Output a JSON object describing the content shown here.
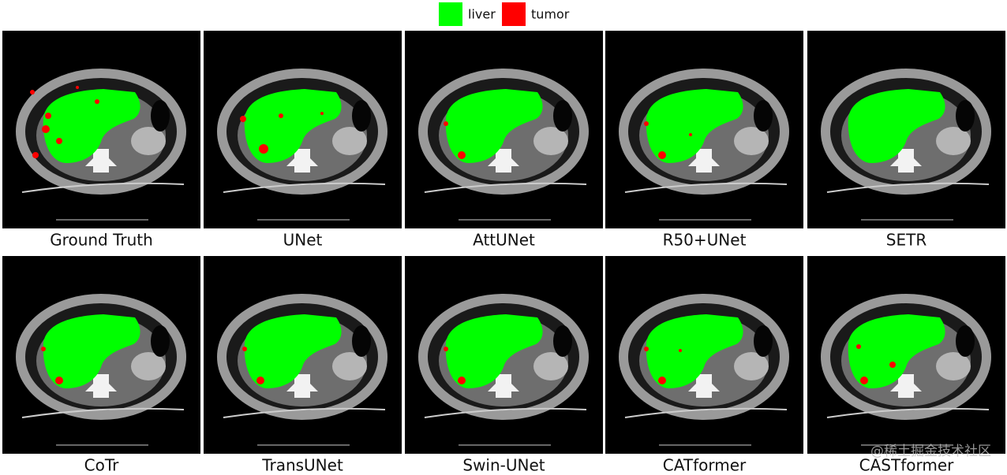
{
  "legend": [
    {
      "label": "liver",
      "color": "#00ff00"
    },
    {
      "label": "tumor",
      "color": "#ff0000"
    }
  ],
  "panels": [
    {
      "label": "Ground Truth"
    },
    {
      "label": "UNet"
    },
    {
      "label": "AttUNet"
    },
    {
      "label": "R50+UNet"
    },
    {
      "label": "SETR"
    },
    {
      "label": "CoTr"
    },
    {
      "label": "TransUNet"
    },
    {
      "label": "Swin-UNet"
    },
    {
      "label": "CATformer"
    },
    {
      "label": "CASTformer"
    }
  ],
  "watermark": "@稀土掘金技术社区"
}
